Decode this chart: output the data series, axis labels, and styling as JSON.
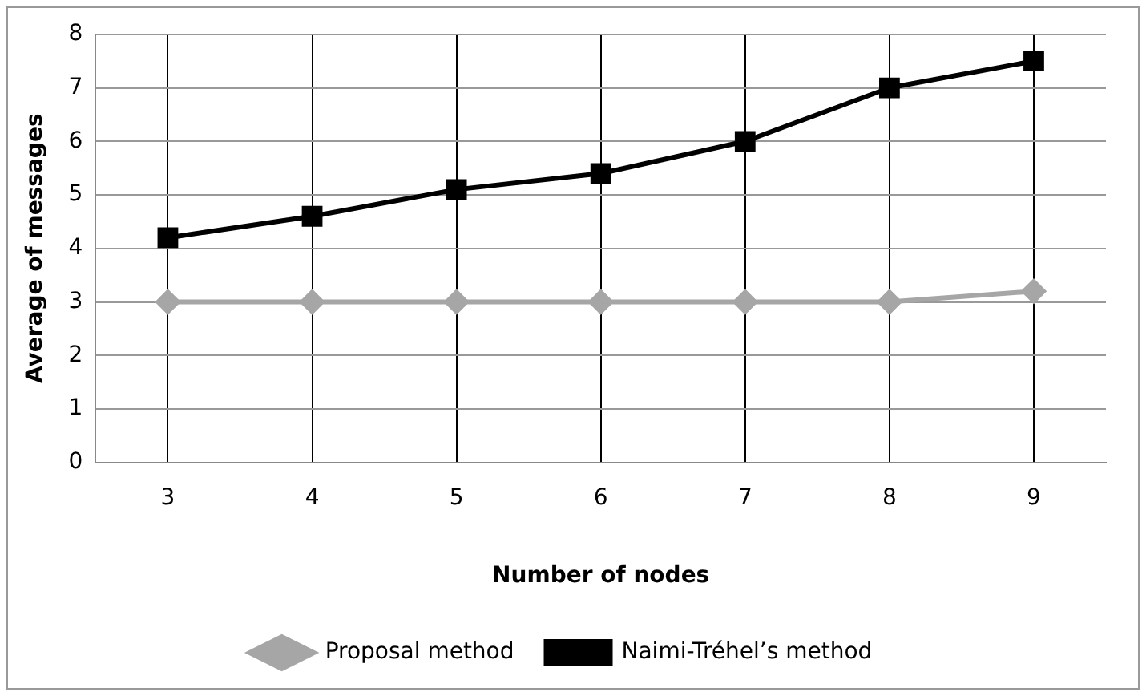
{
  "chart_data": {
    "type": "line",
    "xlabel": "Number of nodes",
    "ylabel": "Average of messages",
    "categories": [
      "3",
      "4",
      "5",
      "6",
      "7",
      "8",
      "9"
    ],
    "series": [
      {
        "name": "Proposal method",
        "color": "#a6a6a6",
        "marker": "diamond",
        "values": [
          3,
          3,
          3,
          3,
          3,
          3,
          3.2
        ]
      },
      {
        "name": "Naimi-Tréhel’s method",
        "color": "#000000",
        "marker": "square",
        "values": [
          4.2,
          4.6,
          5.1,
          5.4,
          6,
          7,
          7.5
        ]
      }
    ],
    "ylim": [
      0,
      8
    ],
    "yticks": [
      0,
      1,
      2,
      3,
      4,
      5,
      6,
      7,
      8
    ],
    "grid": true,
    "legend": "bottom",
    "line_style": "solid"
  }
}
